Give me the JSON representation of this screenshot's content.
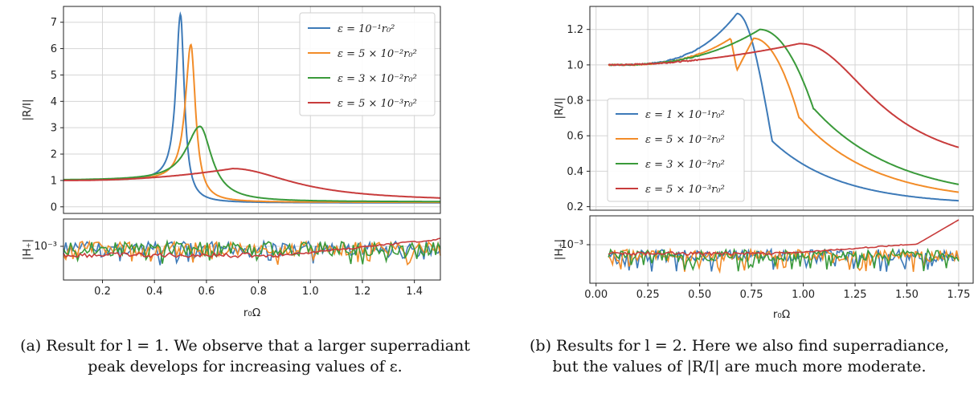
{
  "chart_data": [
    {
      "type": "line",
      "panel": "a",
      "xlabel": "r₀Ω",
      "ylabel": "|R/I|",
      "xlim": [
        0.05,
        1.5
      ],
      "ylim": [
        -0.25,
        7.6
      ],
      "xticks": [
        0.2,
        0.4,
        0.6,
        0.8,
        1.0,
        1.2,
        1.4
      ],
      "yticks": [
        0,
        1,
        2,
        3,
        4,
        5,
        6,
        7
      ],
      "grid": true,
      "legend_position": "top-right",
      "series": [
        {
          "name": "ε = 10⁻¹r₀²",
          "color": "#3d7ab8",
          "peak_x": 0.5,
          "peak_y": 7.3,
          "width": 0.018,
          "tail": 0.15
        },
        {
          "name": "ε = 5 × 10⁻²r₀²",
          "color": "#f28c28",
          "peak_x": 0.54,
          "peak_y": 6.15,
          "width": 0.022,
          "tail": 0.17
        },
        {
          "name": "ε = 3 × 10⁻²r₀²",
          "color": "#3a9a3a",
          "peak_x": 0.575,
          "peak_y": 3.05,
          "width": 0.055,
          "tail": 0.19
        },
        {
          "name": "ε = 5 × 10⁻³r₀²",
          "color": "#c83c3c",
          "peak_x": 0.7,
          "peak_y": 1.45,
          "width": 0.14,
          "tail": 0.21
        }
      ],
      "sub_panel": {
        "ylabel": "|H₊|",
        "ytick_label": "10⁻³",
        "series_note": "noise traces"
      }
    },
    {
      "type": "line",
      "panel": "b",
      "xlabel": "r₀Ω",
      "ylabel": "|R/I|",
      "xlim": [
        -0.03,
        1.82
      ],
      "ylim": [
        0.18,
        1.33
      ],
      "xticks": [
        0.0,
        0.25,
        0.5,
        0.75,
        1.0,
        1.25,
        1.5,
        1.75
      ],
      "xtick_labels": [
        "0.00",
        "0.25",
        "0.50",
        "0.75",
        "1.00",
        "1.25",
        "1.50",
        "1.75"
      ],
      "yticks": [
        0.2,
        0.4,
        0.6,
        0.8,
        1.0,
        1.2
      ],
      "ytick_labels": [
        "0.2",
        "0.4",
        "0.6",
        "0.8",
        "1.0",
        "1.2"
      ],
      "grid": true,
      "legend_position": "center-left",
      "series": [
        {
          "name": "ε = 1 × 10⁻¹r₀²",
          "color": "#3d7ab8"
        },
        {
          "name": "ε = 5 × 10⁻²r₀²",
          "color": "#f28c28"
        },
        {
          "name": "ε = 3 × 10⁻²r₀²",
          "color": "#3a9a3a"
        },
        {
          "name": "ε = 5 × 10⁻³r₀²",
          "color": "#c83c3c"
        }
      ],
      "sub_panel": {
        "ylabel": "|H₊|",
        "ytick_label": "10⁻³"
      }
    }
  ],
  "captions": {
    "a": "(a) Result for l = 1. We observe that a larger superradiant peak develops for increasing values of ε.",
    "b": "(b) Results for l = 2. Here we also find superradiance, but the values of |R/I| are much more moderate."
  }
}
